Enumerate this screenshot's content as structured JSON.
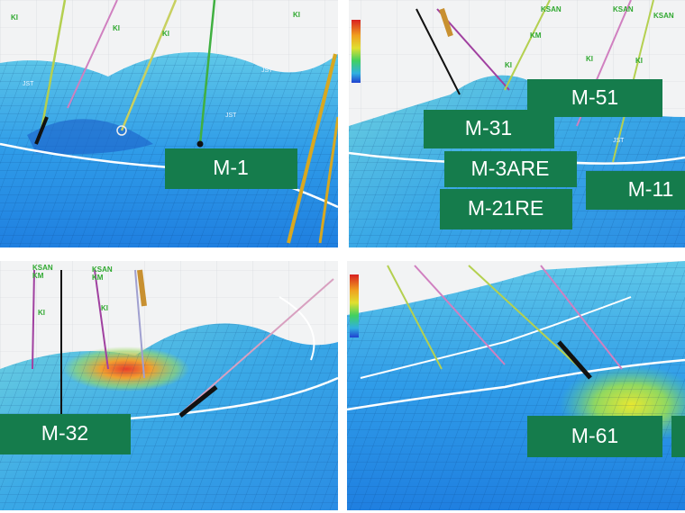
{
  "panels": [
    {
      "labels": [
        "M-1"
      ],
      "tags": [
        "KI",
        "KI",
        "KI",
        "KI",
        "JST",
        "JST",
        "JST"
      ]
    },
    {
      "labels": [
        "M-31",
        "M-51",
        "M-3ARE",
        "M-21RE",
        "M-11"
      ],
      "tags": [
        "KSAN",
        "KSAN",
        "KSAN",
        "KM",
        "KI",
        "KI",
        "KI",
        "JST"
      ]
    },
    {
      "labels": [
        "M-32"
      ],
      "tags": [
        "KSAN",
        "KM",
        "KSAN",
        "KM",
        "KI",
        "KI"
      ]
    },
    {
      "labels": [
        "M-61"
      ],
      "tags": []
    }
  ]
}
